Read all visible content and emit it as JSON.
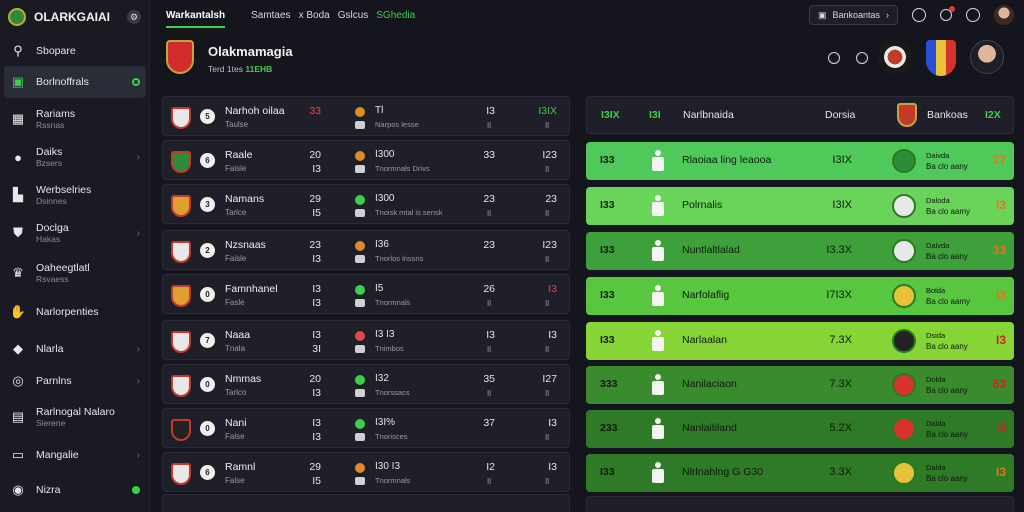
{
  "app": {
    "name": "OLARKGAIAI"
  },
  "colors": {
    "accent": "#3ccf4e",
    "red": "#e04848",
    "bg": "#15161d"
  },
  "sidebar": {
    "items": [
      {
        "label": "Sbopare",
        "sub": "",
        "icon": "search-icon",
        "chev": "",
        "dot": ""
      },
      {
        "label": "Borlnoffrals",
        "sub": "",
        "icon": "calendar-icon",
        "chev": "",
        "dot": "ring"
      },
      {
        "label": "Rariams",
        "sub": "Rssnas",
        "icon": "grid-icon",
        "chev": "",
        "dot": ""
      },
      {
        "label": "Daiks",
        "sub": "Bzsers",
        "icon": "ball-icon",
        "chev": "›",
        "dot": ""
      },
      {
        "label": "Werbselries",
        "sub": "Dsinnes",
        "icon": "stadium-icon",
        "chev": "",
        "dot": ""
      },
      {
        "label": "Doclga",
        "sub": "Hakas",
        "icon": "shield-icon",
        "chev": "›",
        "dot": ""
      },
      {
        "label": "Oaheegtlatl",
        "sub": "Rsvaess",
        "icon": "trophy-icon",
        "chev": "",
        "dot": ""
      },
      {
        "label": "Narlorpenties",
        "sub": "",
        "icon": "hand-icon",
        "chev": "",
        "dot": ""
      },
      {
        "label": "Nlarla",
        "sub": "",
        "icon": "controller-icon",
        "chev": "›",
        "dot": ""
      },
      {
        "label": "Parnlns",
        "sub": "",
        "icon": "ticket-icon",
        "chev": "›",
        "dot": ""
      },
      {
        "label": "Rarlnogal Nalaro",
        "sub": "Sierene",
        "icon": "badge-icon",
        "chev": "",
        "dot": ""
      },
      {
        "label": "Mangalie",
        "sub": "",
        "icon": "tv-icon",
        "chev": "›",
        "dot": ""
      },
      {
        "label": "Nizra",
        "sub": "",
        "icon": "user-icon",
        "chev": "",
        "dot": "fill"
      }
    ]
  },
  "topbar": {
    "tabs": [
      "Warkantalsh",
      "Samtaes",
      "x Boda",
      "Gslcus",
      "SGhedia"
    ],
    "search_label": "Bankoantas"
  },
  "header": {
    "title": "Olakmamagia",
    "sub_left": "Terd 1tes",
    "sub_right": "11EHB"
  },
  "left_rows": [
    {
      "num": "5",
      "team": "Narhoh oilaa",
      "sub": "Taulse",
      "s1": "33",
      "s2": "",
      "odds": "Tl",
      "oddsub": "Narpos lesse",
      "c3": "I3",
      "c3b": "Il",
      "c4": "I3IX",
      "c4b": "Il",
      "crest": "#e8e8e8",
      "ico": "#e08a2a",
      "s1c": "red",
      "c4c": "green"
    },
    {
      "num": "6",
      "team": "Raale",
      "sub": "Faisle",
      "s1": "20",
      "s2": "I3",
      "odds": "I300",
      "oddsub": "Tnormnals Drivs",
      "c3": "33",
      "c3b": "",
      "c4": "I23",
      "c4b": "Il",
      "crest": "#2e8b3a",
      "ico": "#e08a2a",
      "s1c": "",
      "c4c": ""
    },
    {
      "num": "3",
      "team": "Namans",
      "sub": "Tarlce",
      "s1": "29",
      "s2": "I5",
      "odds": "I300",
      "oddsub": "Tnoisk mtal is sensk",
      "c3": "23",
      "c3b": "Il",
      "c4": "23",
      "c4b": "Il",
      "crest": "#e0a030",
      "ico": "#3ccf4e",
      "s1c": "",
      "c4c": ""
    },
    {
      "num": "2",
      "team": "Nzsnaas",
      "sub": "Faisle",
      "s1": "23",
      "s2": "I3",
      "odds": "I36",
      "oddsub": "Tnorlos lnssns",
      "c3": "23",
      "c3b": "",
      "c4": "I23",
      "c4b": "Il",
      "crest": "#e8e8e8",
      "ico": "#e08a2a",
      "s1c": "",
      "c4c": ""
    },
    {
      "num": "0",
      "team": "Famnhanel",
      "sub": "Fasle",
      "s1": "I3",
      "s2": "I3",
      "odds": "I5",
      "oddsub": "Tnormnals",
      "c3": "26",
      "c3b": "Il",
      "c4": "I3",
      "c4b": "Il",
      "crest": "#e0a030",
      "ico": "#3ccf4e",
      "s1c": "",
      "c4c": "red"
    },
    {
      "num": "7",
      "team": "Naaa",
      "sub": "Tnala",
      "s1": "I3",
      "s2": "3I",
      "odds": "I3 I3",
      "oddsub": "Tnimbos",
      "c3": "I3",
      "c3b": "Il",
      "c4": "I3",
      "c4b": "Il",
      "crest": "#e8e8e8",
      "ico": "#e04848",
      "s1c": "",
      "c4c": ""
    },
    {
      "num": "0",
      "team": "Nmmas",
      "sub": "Tarlco",
      "s1": "20",
      "s2": "I3",
      "odds": "I32",
      "oddsub": "Tnorssacs",
      "c3": "35",
      "c3b": "Il",
      "c4": "I27",
      "c4b": "Il",
      "crest": "#e8e8e8",
      "ico": "#3ccf4e",
      "s1c": "",
      "c4c": ""
    },
    {
      "num": "0",
      "team": "Nani",
      "sub": "False",
      "s1": "I3",
      "s2": "I3",
      "odds": "I3I%",
      "oddsub": "Tnorisces",
      "c3": "37",
      "c3b": "",
      "c4": "I3",
      "c4b": "Il",
      "crest": "#222222",
      "ico": "#3ccf4e",
      "s1c": "",
      "c4c": ""
    },
    {
      "num": "6",
      "team": "Ramnl",
      "sub": "False",
      "s1": "29",
      "s2": "I5",
      "odds": "I30 I3",
      "oddsub": "Tnormnals",
      "c3": "I2",
      "c3b": "Il",
      "c4": "I3",
      "c4b": "Il",
      "crest": "#e8e8e8",
      "ico": "#e08a2a",
      "s1c": "",
      "c4c": ""
    }
  ],
  "right_head": {
    "a": "I3IX",
    "b": "I3I",
    "c": "Narlbnaida",
    "d": "Dorsia",
    "e": "Bankoas",
    "f": "I2X"
  },
  "right_rows": [
    {
      "rank": "I33",
      "name": "Rlaoiaa ling leaooa",
      "rating": "I3IX",
      "sub1": "Daivda",
      "sub2": "Ba clo aany",
      "val": "27",
      "bg": "#4ec95a",
      "crest": "#2e8b3a",
      "valc": "orange"
    },
    {
      "rank": "I33",
      "name": "Polrnalis",
      "rating": "I3IX",
      "sub1": "Daloda",
      "sub2": "Ba clo aamy",
      "val": "I3",
      "bg": "#6ad45a",
      "crest": "#e8e8e8",
      "valc": "orange"
    },
    {
      "rank": "I33",
      "name": "Nuntlaltlalad",
      "rating": "I3.3X",
      "sub1": "Daivda",
      "sub2": "Ba clo aany",
      "val": "33",
      "bg": "#3ea03a",
      "crest": "#e8e8e8",
      "valc": "orange"
    },
    {
      "rank": "I33",
      "name": "Narfolaflig",
      "rating": "I7I3X",
      "sub1": "Bolda",
      "sub2": "Ba clo aamy",
      "val": "I3",
      "bg": "#58c63e",
      "crest": "#e8c23a",
      "valc": "orange"
    },
    {
      "rank": "I33",
      "name": "Narlaalan",
      "rating": "7.3X",
      "sub1": "Dsida",
      "sub2": "Ba clo aany",
      "val": "I3",
      "bg": "#86d436",
      "crest": "#222222",
      "valc": "red"
    },
    {
      "rank": "333",
      "name": "Nanilaciaon",
      "rating": "7.3X",
      "sub1": "Dolda",
      "sub2": "Ba clo aany",
      "val": "63",
      "bg": "#3a8a2e",
      "crest": "#d8322e",
      "valc": "red"
    },
    {
      "rank": "233",
      "name": "Nanlaitiland",
      "rating": "5.2X",
      "sub1": "Dalda",
      "sub2": "Ba clo aany",
      "val": "I3",
      "bg": "#2f7a26",
      "crest": "#d8322e",
      "valc": "red"
    },
    {
      "rank": "I33",
      "name": "Nlrlnahlng G G30",
      "rating": "3.3X",
      "sub1": "Dalda",
      "sub2": "Ba clo aany",
      "val": "I3",
      "bg": "#2f7a26",
      "crest": "#e8c23a",
      "valc": "orange"
    }
  ]
}
